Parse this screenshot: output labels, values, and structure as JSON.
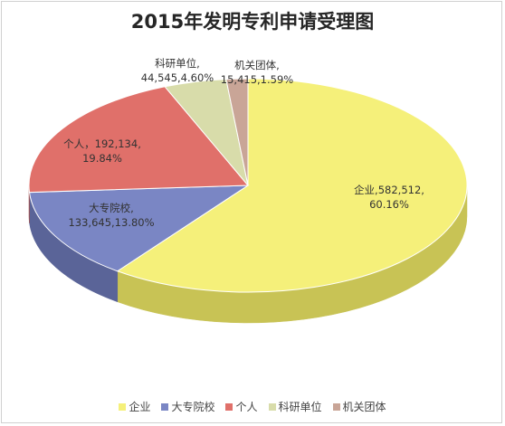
{
  "chart_data": {
    "type": "pie",
    "title": "2015年发明专利申请受理图",
    "slices": [
      {
        "name": "企业",
        "value": 582512,
        "pct": "60.16%",
        "label_line1": "企业,582,512,",
        "label_line2": "60.16%",
        "color": "#f5f07a",
        "side_color": "#c8c355"
      },
      {
        "name": "大专院校",
        "value": 133645,
        "pct": "13.80%",
        "label_line1": "大专院校,",
        "label_line2": "133,645,13.80%",
        "color": "#7a86c4",
        "side_color": "#5a6498"
      },
      {
        "name": "个人",
        "value": 192134,
        "pct": "19.84%",
        "label_line1": "个人，192,134,",
        "label_line2": "19.84%",
        "color": "#e0706a",
        "side_color": "#a85550"
      },
      {
        "name": "科研单位",
        "value": 44545,
        "pct": "4.60%",
        "label_line1": "科研单位,",
        "label_line2": "44,545,4.60%",
        "color": "#d8dcaa",
        "side_color": "#a9ac82"
      },
      {
        "name": "机关团体",
        "value": 15415,
        "pct": "1.59%",
        "label_line1": "机关团体,",
        "label_line2": "15,415,1.59%",
        "color": "#c9a597",
        "side_color": "#9a7d72"
      }
    ],
    "legend_position": "bottom"
  }
}
